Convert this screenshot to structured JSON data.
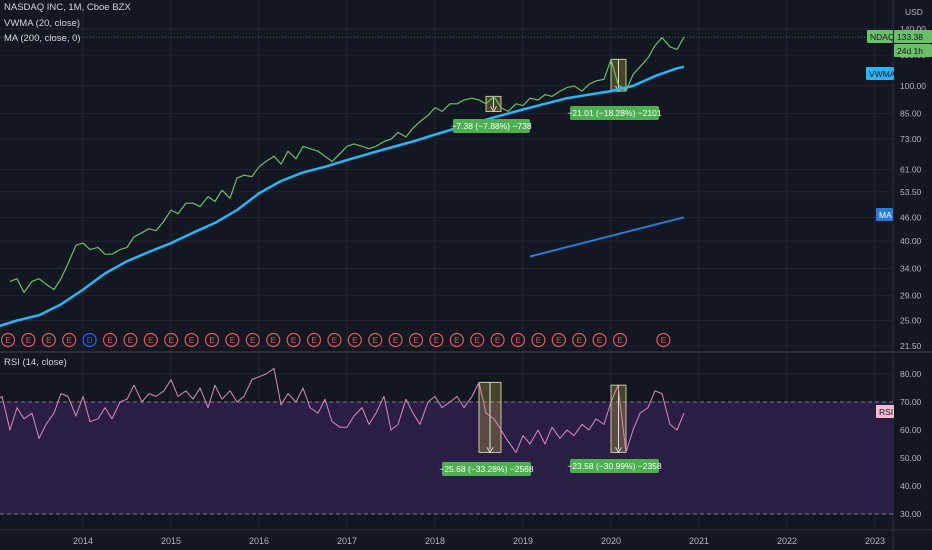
{
  "header": {
    "symbol_line": "NASDAQ INC, 1M, Cboe BZX",
    "vwma_line": "VWMA (20, close)",
    "ma_line": "MA (200, close, 0)",
    "rsi_line": "RSI (14, close)",
    "currency": "USD"
  },
  "price_labels": {
    "ndaq": "NDAQ",
    "ndaq_value": "133.38",
    "countdown": "24d 1h",
    "vwma": "VWMA",
    "ma": "MA",
    "rsi": "RSI"
  },
  "colors": {
    "background": "#131722",
    "price_line": "#6abf69",
    "vwma": "#29b6f6",
    "ma": "#2a7ad8",
    "rsi_line": "#d98ab9",
    "rsi_band": "#2b1e45",
    "earnings_marker": "#e05a5a",
    "measure_label": "#4caf50"
  },
  "chart_data": [
    {
      "type": "line",
      "title": "NASDAQ INC, 1M, Cboe BZX",
      "scale": "log",
      "ylim": [
        20.5,
        150
      ],
      "y_ticks": [
        "21.50",
        "25.00",
        "29.00",
        "34.00",
        "40.00",
        "46.00",
        "53.50",
        "61.00",
        "73.00",
        "85.00",
        "100.00",
        "120.00",
        "140.00"
      ],
      "x_ticks": [
        "2014",
        "2015",
        "2016",
        "2017",
        "2018",
        "2019",
        "2020",
        "2021",
        "2022",
        "2023"
      ],
      "series": [
        {
          "name": "NDAQ",
          "x": [
            2013.17,
            2013.25,
            2013.33,
            2013.42,
            2013.5,
            2013.58,
            2013.67,
            2013.75,
            2013.83,
            2013.92,
            2014.0,
            2014.08,
            2014.17,
            2014.25,
            2014.33,
            2014.42,
            2014.5,
            2014.58,
            2014.67,
            2014.75,
            2014.83,
            2014.92,
            2015.0,
            2015.08,
            2015.17,
            2015.25,
            2015.33,
            2015.42,
            2015.5,
            2015.58,
            2015.67,
            2015.75,
            2015.83,
            2015.92,
            2016.0,
            2016.08,
            2016.17,
            2016.25,
            2016.33,
            2016.42,
            2016.5,
            2016.58,
            2016.67,
            2016.75,
            2016.83,
            2016.92,
            2017.0,
            2017.08,
            2017.17,
            2017.25,
            2017.33,
            2017.42,
            2017.5,
            2017.58,
            2017.67,
            2017.75,
            2017.83,
            2017.92,
            2018.0,
            2018.08,
            2018.17,
            2018.25,
            2018.33,
            2018.42,
            2018.5,
            2018.58,
            2018.67,
            2018.75,
            2018.83,
            2018.92,
            2019.0,
            2019.08,
            2019.17,
            2019.25,
            2019.33,
            2019.42,
            2019.5,
            2019.58,
            2019.67,
            2019.75,
            2019.83,
            2019.92,
            2020.0,
            2020.08,
            2020.17,
            2020.25,
            2020.33,
            2020.42,
            2020.5,
            2020.58,
            2020.67,
            2020.75,
            2020.83
          ],
          "values": [
            31.5,
            32,
            29.5,
            31.5,
            32,
            31,
            30,
            32,
            35,
            39,
            39.5,
            38,
            38.5,
            37,
            37,
            38,
            38.5,
            41,
            42,
            43,
            42.5,
            45,
            48,
            47,
            50,
            50,
            49,
            52,
            50.5,
            54,
            51.5,
            58,
            59,
            58.5,
            62,
            64,
            66,
            63,
            68,
            65,
            70,
            69,
            68,
            66,
            64,
            67,
            70,
            71,
            70,
            69,
            70,
            72,
            73,
            76,
            74,
            78,
            81,
            84,
            88,
            86,
            90,
            90,
            92,
            93,
            92,
            90,
            94,
            88,
            86,
            90,
            89,
            93,
            92,
            95,
            94,
            97,
            99,
            100,
            97,
            101,
            103,
            104,
            117,
            101,
            97,
            107,
            112,
            118,
            127,
            133,
            126,
            124,
            133.38
          ]
        },
        {
          "name": "VWMA",
          "x": [
            2013.0,
            2013.25,
            2013.5,
            2013.75,
            2014.0,
            2014.25,
            2014.5,
            2014.75,
            2015.0,
            2015.25,
            2015.5,
            2015.75,
            2016.0,
            2016.25,
            2016.5,
            2016.75,
            2017.0,
            2017.25,
            2017.5,
            2017.75,
            2018.0,
            2018.25,
            2018.5,
            2018.75,
            2019.0,
            2019.25,
            2019.5,
            2019.75,
            2020.0,
            2020.25,
            2020.5,
            2020.75,
            2020.83
          ],
          "values": [
            24,
            25,
            25.8,
            27.5,
            30,
            33,
            35.5,
            37.5,
            39.5,
            42,
            44.5,
            48,
            53,
            57,
            60,
            62,
            64.5,
            67,
            69.5,
            72,
            75,
            78,
            81,
            84,
            87,
            90,
            93,
            95,
            97,
            100,
            106,
            111,
            112
          ]
        },
        {
          "name": "MA",
          "x": [
            2019.08,
            2020.83
          ],
          "values": [
            36.5,
            46
          ]
        }
      ],
      "markers": {
        "label": "E",
        "highlighted_label": "D",
        "count": 32
      },
      "measurements": [
        {
          "label": "−7.38 (−7.88%) −738"
        },
        {
          "label": "−21.01 (−18.28%) −2101"
        }
      ]
    },
    {
      "type": "line",
      "title": "RSI (14, close)",
      "ylim": [
        25,
        85
      ],
      "y_ticks": [
        "30.00",
        "40.00",
        "50.00",
        "60.00",
        "70.00",
        "80.00"
      ],
      "band": [
        30,
        70
      ],
      "series": [
        {
          "name": "RSI",
          "x": [
            2013.0,
            2013.08,
            2013.17,
            2013.25,
            2013.33,
            2013.42,
            2013.5,
            2013.58,
            2013.67,
            2013.75,
            2013.83,
            2013.92,
            2014.0,
            2014.08,
            2014.17,
            2014.25,
            2014.33,
            2014.42,
            2014.5,
            2014.58,
            2014.67,
            2014.75,
            2014.83,
            2014.92,
            2015.0,
            2015.08,
            2015.17,
            2015.25,
            2015.33,
            2015.42,
            2015.5,
            2015.58,
            2015.67,
            2015.75,
            2015.83,
            2015.92,
            2016.0,
            2016.08,
            2016.17,
            2016.25,
            2016.33,
            2016.42,
            2016.5,
            2016.58,
            2016.67,
            2016.75,
            2016.83,
            2016.92,
            2017.0,
            2017.08,
            2017.17,
            2017.25,
            2017.33,
            2017.42,
            2017.5,
            2017.58,
            2017.67,
            2017.75,
            2017.83,
            2017.92,
            2018.0,
            2018.08,
            2018.17,
            2018.25,
            2018.33,
            2018.42,
            2018.5,
            2018.58,
            2018.67,
            2018.75,
            2018.83,
            2018.92,
            2019.0,
            2019.08,
            2019.17,
            2019.25,
            2019.33,
            2019.42,
            2019.5,
            2019.58,
            2019.67,
            2019.75,
            2019.83,
            2019.92,
            2020.0,
            2020.08,
            2020.17,
            2020.25,
            2020.33,
            2020.42,
            2020.5,
            2020.58,
            2020.67,
            2020.75,
            2020.83
          ],
          "values": [
            70,
            72,
            60,
            68,
            64,
            66,
            57,
            62,
            66,
            73,
            72,
            65,
            72,
            63,
            64,
            68,
            64,
            70,
            71,
            76,
            70,
            73,
            72,
            74,
            78,
            72,
            74,
            71,
            75,
            68,
            76,
            71,
            74,
            70,
            72,
            78,
            79,
            80,
            82,
            69,
            73,
            70,
            75,
            68,
            66,
            71,
            63,
            61,
            61,
            65,
            68,
            62,
            66,
            72,
            60,
            62,
            71,
            66,
            62,
            70,
            72,
            68,
            70,
            72,
            68,
            72,
            77,
            66,
            64,
            60,
            56,
            52,
            58,
            55,
            60,
            55,
            61,
            57,
            60,
            58,
            62,
            60,
            64,
            62,
            70,
            76,
            52,
            60,
            66,
            68,
            74,
            73,
            62,
            60,
            66
          ]
        }
      ],
      "measurements": [
        {
          "label": "−25.68 (−33.28%) −2568"
        },
        {
          "label": "−23.58 (−30.99%) −2358"
        }
      ]
    }
  ]
}
